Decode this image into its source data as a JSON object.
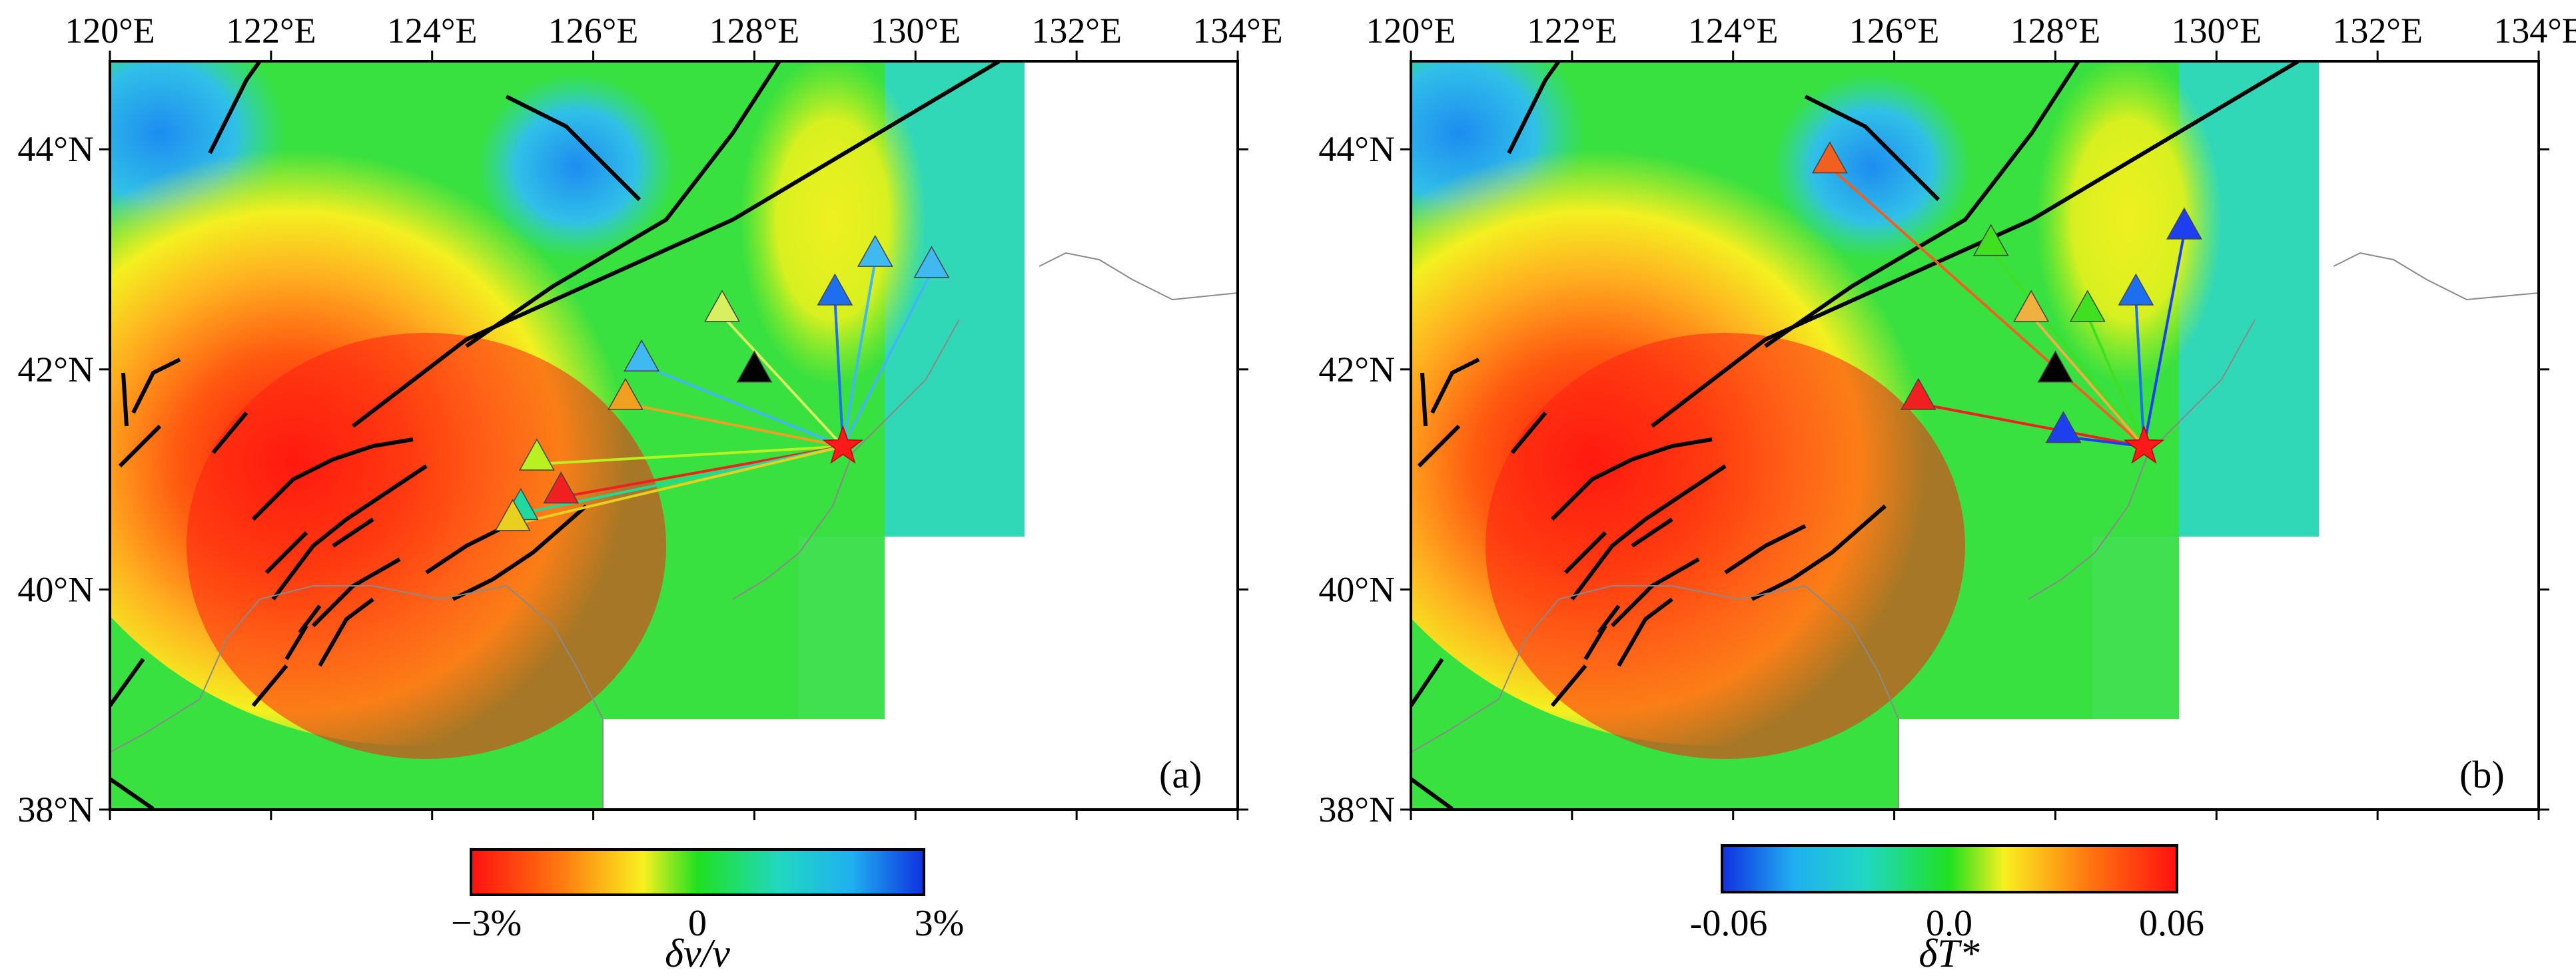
{
  "map": {
    "lon_labels": [
      "120°E",
      "122°E",
      "124°E",
      "126°E",
      "128°E",
      "130°E",
      "132°E",
      "134°E"
    ],
    "lat_labels": [
      "38°N",
      "40°N",
      "42°N",
      "44°N"
    ]
  },
  "panels": [
    {
      "label": "(a)",
      "colorbar": {
        "scheme": "red-yellow-green-blue",
        "tick_labels": [
          "−3%",
          "0",
          "3%"
        ],
        "title": "δv/v"
      },
      "event": {
        "lon": 129.1,
        "lat": 41.3,
        "color": "#ff1a1a"
      },
      "black_triangle": {
        "lon": 128.0,
        "lat": 42.0,
        "color": "#000000"
      },
      "stations": [
        {
          "lon": 129.0,
          "lat": 42.7,
          "color": "#1e6ff0"
        },
        {
          "lon": 129.5,
          "lat": 43.05,
          "color": "#40b8f0"
        },
        {
          "lon": 130.2,
          "lat": 42.95,
          "color": "#40b8f0"
        },
        {
          "lon": 127.6,
          "lat": 42.55,
          "color": "#d8f060"
        },
        {
          "lon": 126.6,
          "lat": 42.1,
          "color": "#40b8f0"
        },
        {
          "lon": 126.4,
          "lat": 41.75,
          "color": "#f0a020"
        },
        {
          "lon": 125.3,
          "lat": 41.2,
          "color": "#b8f020"
        },
        {
          "lon": 125.6,
          "lat": 40.9,
          "color": "#f02020"
        },
        {
          "lon": 125.1,
          "lat": 40.75,
          "color": "#20d8a0"
        },
        {
          "lon": 125.0,
          "lat": 40.65,
          "color": "#e8d020"
        }
      ]
    },
    {
      "label": "(b)",
      "colorbar": {
        "scheme": "blue-green-yellow-red",
        "tick_labels": [
          "-0.06",
          "0.0",
          "0.06"
        ],
        "title": "δT*"
      },
      "event": {
        "lon": 129.1,
        "lat": 41.3,
        "color": "#ff1a1a"
      },
      "black_triangle": {
        "lon": 128.0,
        "lat": 42.0,
        "color": "#000000"
      },
      "stations": [
        {
          "lon": 125.2,
          "lat": 43.9,
          "color": "#f06020"
        },
        {
          "lon": 127.2,
          "lat": 43.15,
          "color": "#40e020"
        },
        {
          "lon": 127.7,
          "lat": 42.55,
          "color": "#f0b040"
        },
        {
          "lon": 128.4,
          "lat": 42.55,
          "color": "#40e020"
        },
        {
          "lon": 129.0,
          "lat": 42.7,
          "color": "#1e6ff0"
        },
        {
          "lon": 129.6,
          "lat": 43.3,
          "color": "#1e3ff0"
        },
        {
          "lon": 126.3,
          "lat": 41.75,
          "color": "#f02020"
        },
        {
          "lon": 128.1,
          "lat": 41.45,
          "color": "#1e3ff0"
        }
      ]
    }
  ]
}
